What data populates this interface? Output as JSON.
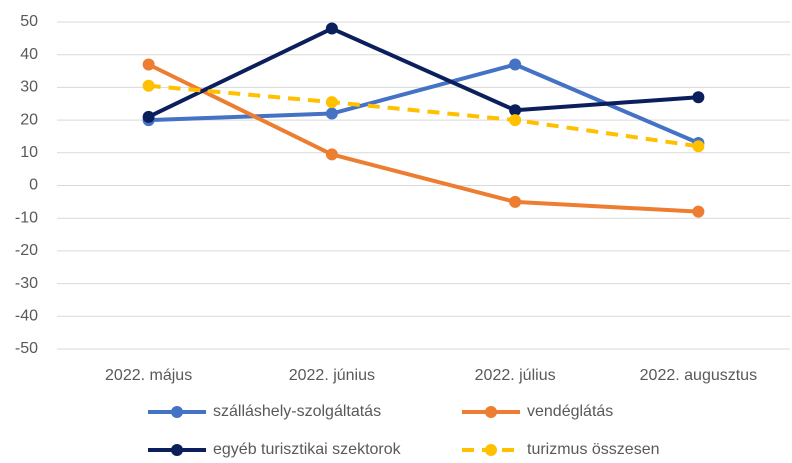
{
  "chart_data": {
    "type": "line",
    "categories": [
      "2022. május",
      "2022. június",
      "2022. július",
      "2022. augusztus"
    ],
    "series": [
      {
        "name": "szálláshely-szolgáltatás",
        "color": "#4472c4",
        "values": [
          20,
          22,
          37,
          13
        ]
      },
      {
        "name": "vendéglátás",
        "color": "#ed7d31",
        "values": [
          37,
          9.5,
          -5,
          -8
        ]
      },
      {
        "name": "egyéb turisztikai szektorok",
        "color": "#0b1f5c",
        "values": [
          21,
          48,
          23,
          27
        ]
      },
      {
        "name": "turizmus összesen",
        "color": "#ffc000",
        "dashed": true,
        "values": [
          30.5,
          25.5,
          20,
          12
        ]
      }
    ],
    "ylim": [
      -50,
      50
    ],
    "yticks": [
      -50,
      -40,
      -30,
      -20,
      -10,
      0,
      10,
      20,
      30,
      40,
      50
    ],
    "grid": true,
    "legend": "bottom"
  }
}
